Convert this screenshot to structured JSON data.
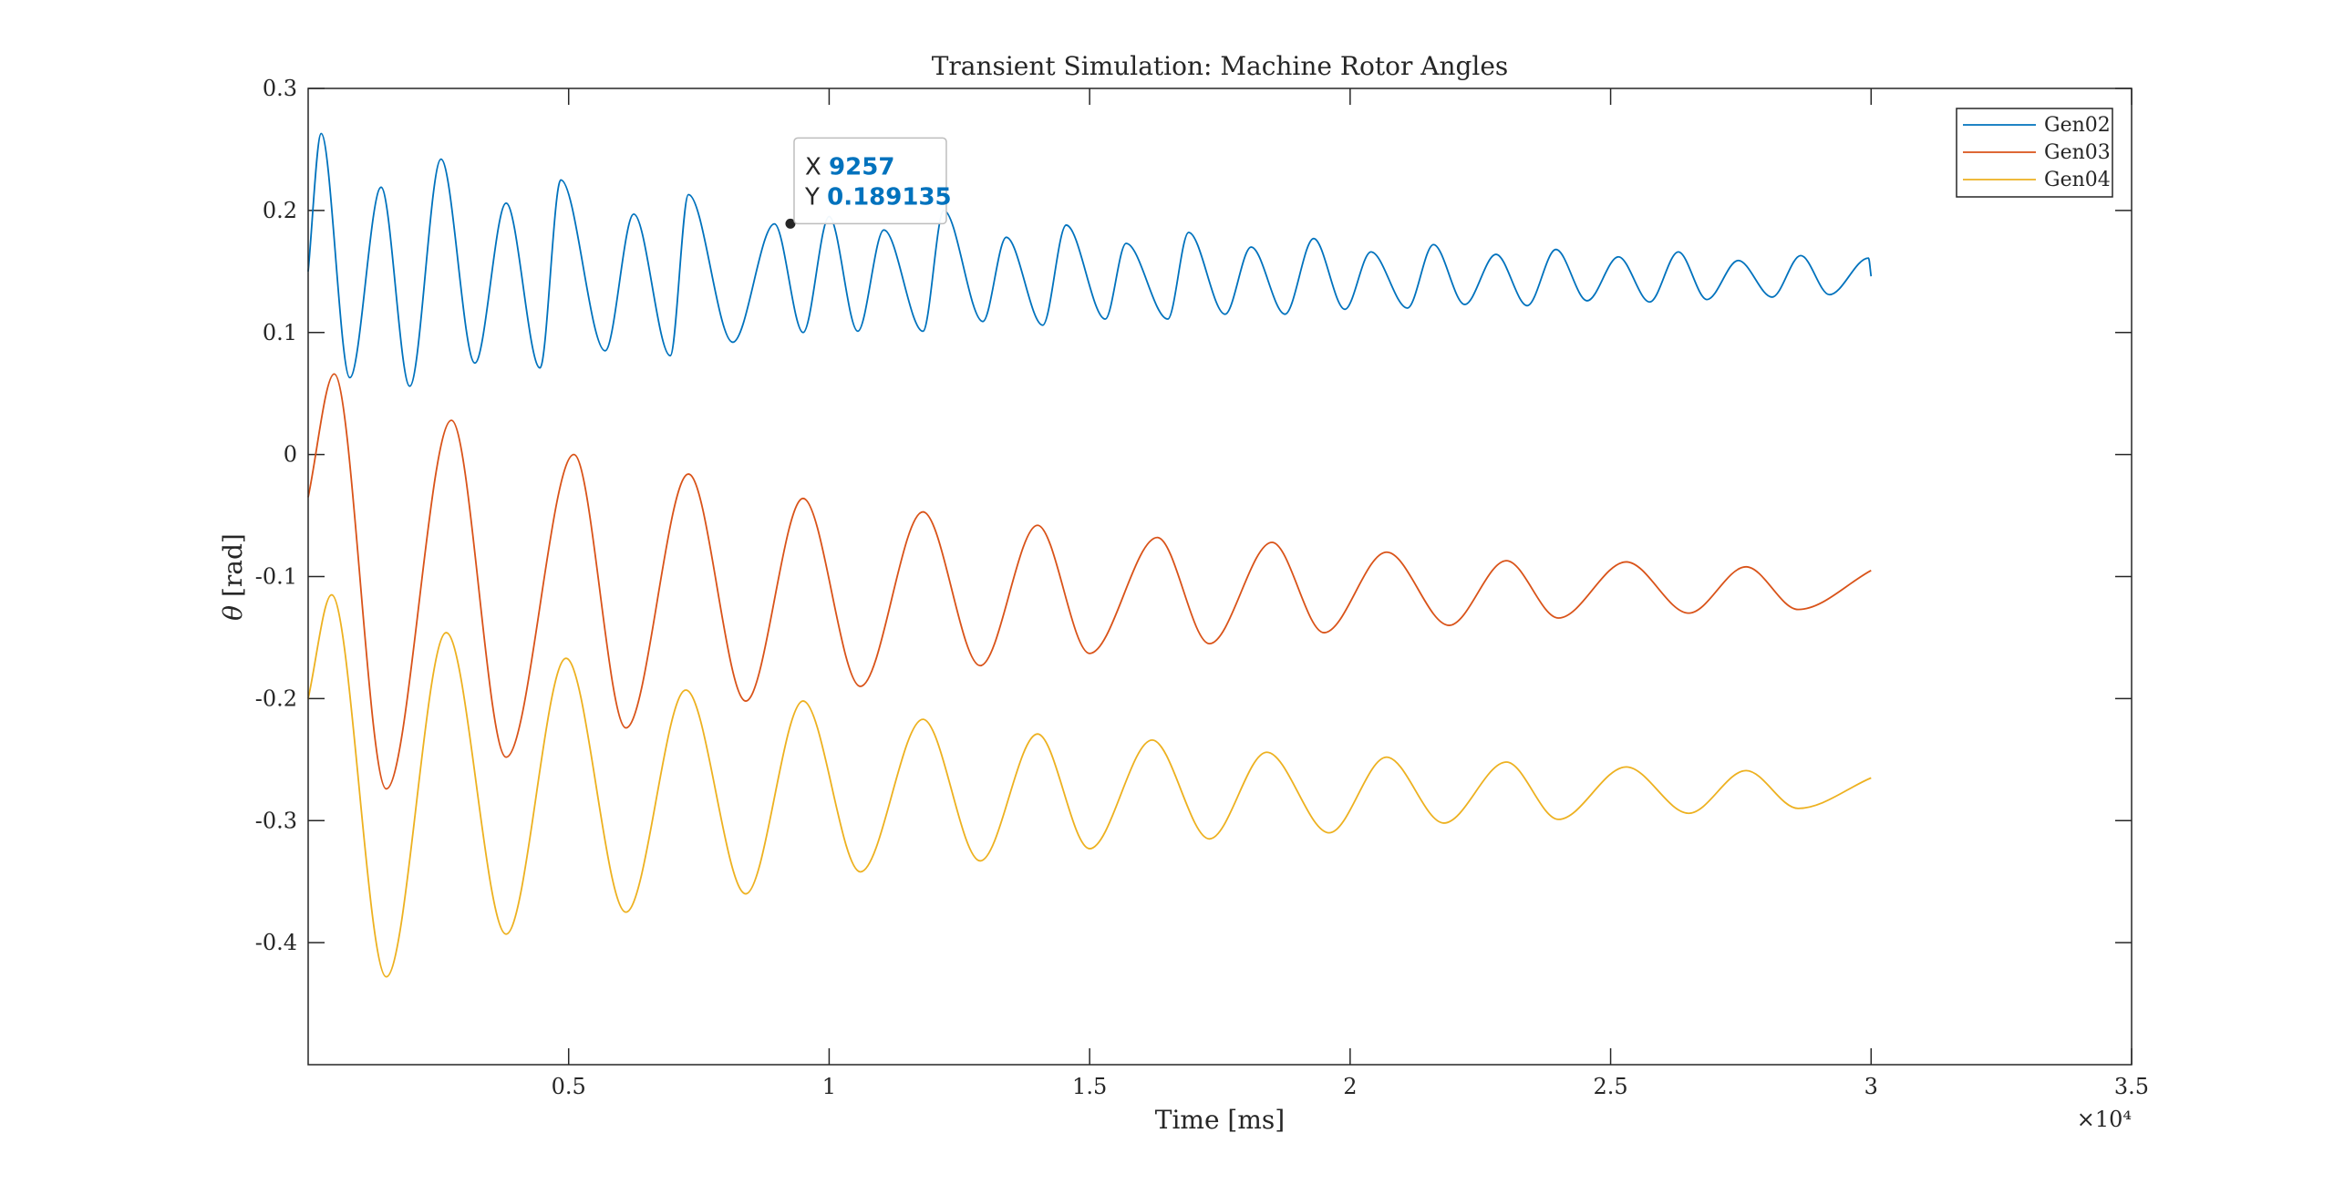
{
  "chart_data": {
    "type": "line",
    "title": "Transient Simulation: Machine Rotor Angles",
    "xlabel": "Time [ms]",
    "ylabel_symbol": "θ",
    "ylabel_unit": "[rad]",
    "x_exponent_label": "×10⁴",
    "xlim": [
      0,
      35000
    ],
    "ylim": [
      -0.5,
      0.3
    ],
    "xticks": [
      5000,
      10000,
      15000,
      20000,
      25000,
      30000,
      35000
    ],
    "xtick_labels": [
      "0.5",
      "1",
      "1.5",
      "2",
      "2.5",
      "3",
      "3.5"
    ],
    "yticks": [
      -0.4,
      -0.3,
      -0.2,
      -0.1,
      0,
      0.1,
      0.2,
      0.3
    ],
    "ytick_labels": [
      "-0.4",
      "-0.3",
      "-0.2",
      "-0.1",
      "0",
      "0.1",
      "0.2",
      "0.3"
    ],
    "legend_position": "top-right",
    "series": [
      {
        "name": "Gen02",
        "color": "#0072BD",
        "x": [
          0,
          250,
          800,
          1400,
          1950,
          2550,
          3200,
          3800,
          4450,
          4850,
          5700,
          6250,
          6950,
          7300,
          8150,
          8950,
          9500,
          10000,
          10550,
          11050,
          11800,
          12200,
          12950,
          13400,
          14100,
          14550,
          15300,
          15700,
          16500,
          16900,
          17600,
          18100,
          18750,
          19300,
          19900,
          20400,
          21100,
          21600,
          22200,
          22800,
          23400,
          23950,
          24550,
          25150,
          25750,
          26300,
          26850,
          27450,
          28100,
          28650,
          29200,
          29950,
          30000
        ],
        "y": [
          0.15,
          0.263,
          0.063,
          0.219,
          0.056,
          0.242,
          0.075,
          0.206,
          0.071,
          0.225,
          0.085,
          0.197,
          0.081,
          0.213,
          0.092,
          0.189,
          0.1,
          0.195,
          0.101,
          0.184,
          0.101,
          0.2,
          0.109,
          0.178,
          0.106,
          0.188,
          0.111,
          0.173,
          0.111,
          0.182,
          0.115,
          0.17,
          0.115,
          0.177,
          0.119,
          0.166,
          0.12,
          0.172,
          0.123,
          0.164,
          0.122,
          0.168,
          0.126,
          0.162,
          0.125,
          0.166,
          0.127,
          0.159,
          0.129,
          0.163,
          0.131,
          0.161,
          0.146
        ]
      },
      {
        "name": "Gen03",
        "color": "#D95319",
        "x": [
          0,
          500,
          1500,
          2750,
          3800,
          5100,
          6100,
          7300,
          8400,
          9500,
          10600,
          11800,
          12900,
          14000,
          15000,
          16300,
          17300,
          18500,
          19500,
          20700,
          21900,
          23000,
          24000,
          25300,
          26500,
          27600,
          28600,
          30000
        ],
        "y": [
          -0.035,
          0.066,
          -0.274,
          0.028,
          -0.248,
          0.0,
          -0.224,
          -0.016,
          -0.202,
          -0.036,
          -0.19,
          -0.047,
          -0.173,
          -0.058,
          -0.163,
          -0.068,
          -0.155,
          -0.072,
          -0.146,
          -0.08,
          -0.14,
          -0.087,
          -0.134,
          -0.088,
          -0.13,
          -0.092,
          -0.127,
          -0.095
        ]
      },
      {
        "name": "Gen04",
        "color": "#EDB120",
        "x": [
          0,
          450,
          1500,
          2650,
          3800,
          4950,
          6100,
          7250,
          8400,
          9500,
          10600,
          11800,
          12900,
          14000,
          15000,
          16200,
          17300,
          18400,
          19600,
          20700,
          21800,
          23000,
          24000,
          25300,
          26500,
          27600,
          28600,
          30000
        ],
        "y": [
          -0.2,
          -0.115,
          -0.428,
          -0.146,
          -0.393,
          -0.167,
          -0.375,
          -0.193,
          -0.36,
          -0.202,
          -0.342,
          -0.217,
          -0.333,
          -0.229,
          -0.323,
          -0.234,
          -0.315,
          -0.244,
          -0.31,
          -0.248,
          -0.302,
          -0.252,
          -0.299,
          -0.256,
          -0.294,
          -0.259,
          -0.29,
          -0.265
        ]
      }
    ],
    "datatip": {
      "x_label": "X",
      "x_value": "9257",
      "y_label": "Y",
      "y_value": "0.189135",
      "x": 9257,
      "y": 0.189135
    }
  }
}
